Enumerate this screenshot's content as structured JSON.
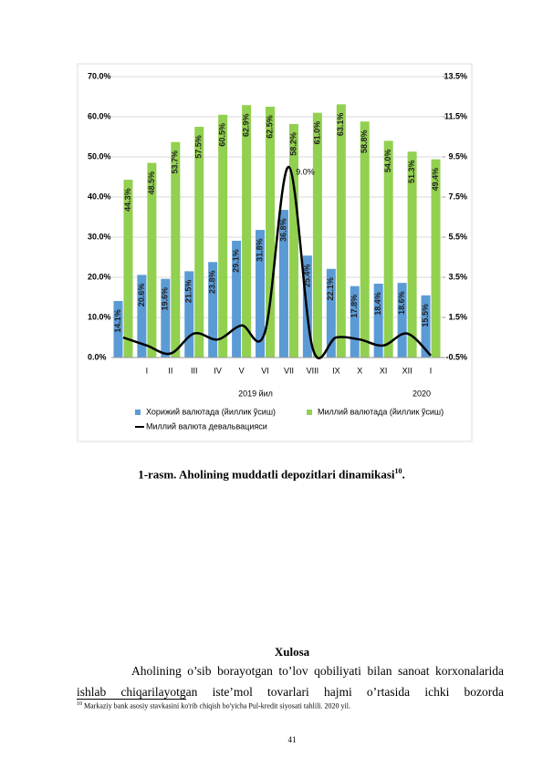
{
  "chart_data": {
    "type": "bar-line",
    "categories": [
      null,
      "I",
      "II",
      "III",
      "IV",
      "V",
      "VI",
      "VII",
      "VIII",
      "IX",
      "X",
      "XI",
      "XII",
      "I"
    ],
    "period_labels": [
      "2019 йил",
      "2020"
    ],
    "series": [
      {
        "name": "Хорижий валютада (йиллик ўсиш)",
        "color": "#5b9bd5",
        "values": [
          14.1,
          20.6,
          19.6,
          21.5,
          23.8,
          29.1,
          31.8,
          36.8,
          25.4,
          22.1,
          17.8,
          18.4,
          18.6,
          15.5
        ],
        "value_labels": [
          "14.1%",
          "20.6%",
          "19.6%",
          "21.5%",
          "23.8%",
          "29.1%",
          "31.8%",
          "36.8%",
          "25.4%",
          "22.1%",
          "17.8%",
          "18.4%",
          "18.6%",
          "15.5%"
        ]
      },
      {
        "name": "Миллий валютада (йиллик ўсиш)",
        "color": "#92d050",
        "values": [
          44.3,
          48.5,
          53.7,
          57.5,
          60.5,
          62.9,
          62.5,
          58.2,
          61.0,
          63.1,
          58.8,
          54.0,
          51.3,
          49.4
        ],
        "value_labels": [
          "44.3%",
          "48.5%",
          "53.7%",
          "57.5%",
          "60.5%",
          "62.9%",
          "62.5%",
          "58.2%",
          "61.0%",
          "63.1%",
          "58.8%",
          "54.0%",
          "51.3%",
          "49.4%"
        ]
      },
      {
        "name": "Миллий валюта девальвацияси",
        "color": "#000000",
        "axis": "y2",
        "values": [
          0.5,
          0.1,
          -0.3,
          0.7,
          0.4,
          1.1,
          0.8,
          9.0,
          0.0,
          0.5,
          0.4,
          0.1,
          0.7,
          -0.4
        ]
      }
    ],
    "annotation": "9.0%",
    "ylim": [
      0,
      70
    ],
    "yticks": [
      {
        "value": 0,
        "label": "0.0%"
      },
      {
        "value": 10,
        "label": "10.0%"
      },
      {
        "value": 20,
        "label": "20.0%"
      },
      {
        "value": 30,
        "label": "30.0%"
      },
      {
        "value": 40,
        "label": "40.0%"
      },
      {
        "value": 50,
        "label": "50.0%"
      },
      {
        "value": 60,
        "label": "60.0%"
      },
      {
        "value": 70,
        "label": "70.0%"
      }
    ],
    "y2lim": [
      -0.5,
      13.5
    ],
    "y2ticks": [
      {
        "value": -0.5,
        "label": "-0.5%"
      },
      {
        "value": 1.5,
        "label": "1.5%"
      },
      {
        "value": 3.5,
        "label": "3.5%"
      },
      {
        "value": 5.5,
        "label": "5.5%"
      },
      {
        "value": 7.5,
        "label": "7.5%"
      },
      {
        "value": 9.5,
        "label": "9.5%"
      },
      {
        "value": 11.5,
        "label": "11.5%"
      },
      {
        "value": 13.5,
        "label": "13.5%"
      }
    ],
    "grid": true
  },
  "caption": {
    "text": "1-rasm. Aholining muddatli depozitlari dinamikasi",
    "footnote_ref": "10",
    "end": "."
  },
  "section": {
    "title": "Xulosa",
    "paragraph": "Aholining o’sib borayotgan to’lov qobiliyati bilan sanoat korxonalarida ishlab chiqarilayotgan iste’mol tovarlari hajmi o’rtasida ichki bozorda"
  },
  "footnote": {
    "number": "10",
    "text": "Markaziy bank asosiy stavkasini ko'rib chiqish bo'yicha Pul-kredit siyosati tahlili. 2020 yil."
  },
  "page_number": "41"
}
